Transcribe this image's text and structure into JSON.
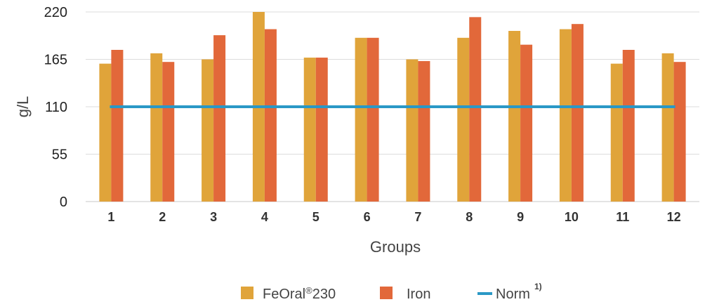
{
  "chart_data": {
    "type": "bar",
    "title": "",
    "xlabel": "Groups",
    "ylabel": "g/L",
    "ylim": [
      0,
      220
    ],
    "yticks": [
      "0",
      "55",
      "110",
      "165",
      "220"
    ],
    "grid": true,
    "legend_position": "bottom",
    "categories": [
      "1",
      "2",
      "3",
      "4",
      "5",
      "6",
      "7",
      "8",
      "9",
      "10",
      "11",
      "12"
    ],
    "series": [
      {
        "name": "FeOral®230",
        "legend_main": "FeOral",
        "legend_mark": "®",
        "legend_tail": "230",
        "color": "#e0a43a",
        "values": [
          160,
          172,
          165,
          220,
          167,
          190,
          165,
          190,
          198,
          200,
          160,
          172
        ]
      },
      {
        "name": "Iron",
        "color": "#e2683a",
        "values": [
          176,
          162,
          193,
          200,
          167,
          190,
          163,
          214,
          182,
          206,
          176,
          162
        ]
      }
    ],
    "reference_line": {
      "name": "Norm",
      "footnote": "1)",
      "value": 110,
      "color": "#2a98c6"
    }
  }
}
